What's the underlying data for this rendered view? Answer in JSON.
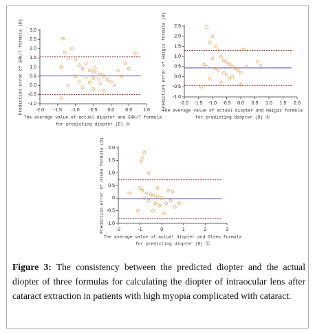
{
  "chart_data": [
    {
      "type": "scatter",
      "ylabel": "Prediction error of SRK/T formula (D)",
      "xlabel": [
        "The average value of actual diopter and SRK/T formula",
        "for predicting diopter (D) Ⓐ"
      ],
      "xlim": [
        -2,
        1
      ],
      "ylim": [
        -1,
        3
      ],
      "xticks": [
        {
          "value": -2,
          "label": "-2.0"
        },
        {
          "value": -1.5,
          "label": "-1.5"
        },
        {
          "value": -1,
          "label": "-1.0"
        },
        {
          "value": -0.5,
          "label": "-0.5"
        },
        {
          "value": 0,
          "label": "0.0"
        },
        {
          "value": 0.5,
          "label": "0.5"
        },
        {
          "value": 1,
          "label": "1.0"
        }
      ],
      "yticks": [
        {
          "value": 3,
          "label": "3.0"
        },
        {
          "value": 2.5,
          "label": "2.5"
        },
        {
          "value": 2,
          "label": "2.0"
        },
        {
          "value": 1.5,
          "label": "1.5"
        },
        {
          "value": 1,
          "label": "1.0"
        },
        {
          "value": 0.5,
          "label": "0.5"
        },
        {
          "value": 0,
          "label": "0.0"
        },
        {
          "value": -0.5,
          "label": "-0.5"
        },
        {
          "value": -1,
          "label": "-1.0"
        }
      ],
      "color": "#f0a050",
      "hlines": [
        {
          "value": 1.55,
          "color": "#9a2020",
          "dashed": true
        },
        {
          "value": 0.52,
          "color": "#4a4ab0",
          "dashed": false
        },
        {
          "value": -0.5,
          "color": "#9a2020",
          "dashed": true
        }
      ],
      "x": [
        -1.35,
        -1.1,
        -1.3,
        -1.2,
        -1.0,
        -0.9,
        -1.4,
        -0.8,
        -0.6,
        -0.5,
        -0.4,
        -0.3,
        -0.2,
        -1.0,
        -0.7,
        -0.5,
        -0.35,
        -0.1,
        0.0,
        -0.9,
        -0.6,
        -0.3,
        0.1,
        -1.2,
        -0.8,
        -0.5,
        -0.2,
        -1.4,
        0.3,
        0.5,
        0.7,
        0.4,
        -0.7,
        -0.45,
        0.2
      ],
      "values": [
        2.55,
        2.0,
        1.8,
        1.5,
        1.4,
        1.1,
        1.0,
        0.9,
        0.8,
        0.75,
        0.7,
        0.6,
        0.5,
        0.5,
        0.45,
        0.4,
        0.35,
        0.3,
        0.2,
        0.2,
        0.15,
        0.1,
        0.0,
        0.0,
        -0.1,
        -0.2,
        -0.3,
        -0.7,
        0.5,
        0.9,
        1.75,
        1.2,
        1.2,
        0.95,
        0.8
      ]
    },
    {
      "type": "scatter",
      "ylabel": "Prediction error of Haigis formula (D)",
      "xlabel": [
        "The average value of actual diopter and Haigis formula",
        "for predicting diopter (D) Ⓑ"
      ],
      "xlim": [
        -2,
        2
      ],
      "ylim": [
        -1,
        2.5
      ],
      "xticks": [
        {
          "value": -2,
          "label": "-2.0"
        },
        {
          "value": -1.5,
          "label": "-1.5"
        },
        {
          "value": -1,
          "label": "-1.0"
        },
        {
          "value": -0.5,
          "label": "-0.5"
        },
        {
          "value": 0,
          "label": "0.0"
        },
        {
          "value": 0.5,
          "label": "0.5"
        },
        {
          "value": 1,
          "label": "1.0"
        },
        {
          "value": 1.5,
          "label": "1.5"
        },
        {
          "value": 2,
          "label": "2.0"
        }
      ],
      "yticks": [
        {
          "value": 2.5,
          "label": "2.5"
        },
        {
          "value": 2,
          "label": "2.0"
        },
        {
          "value": 1.5,
          "label": "1.5"
        },
        {
          "value": 1,
          "label": "1.0"
        },
        {
          "value": 0.5,
          "label": "0.5"
        },
        {
          "value": 0,
          "label": "0.0"
        },
        {
          "value": -0.5,
          "label": "-0.5"
        },
        {
          "value": -1,
          "label": "-1.0"
        }
      ],
      "color": "#f0a050",
      "hlines": [
        {
          "value": 1.3,
          "color": "#9a2020",
          "dashed": true
        },
        {
          "value": 0.43,
          "color": "#4a4ab0",
          "dashed": false
        },
        {
          "value": -0.43,
          "color": "#9a2020",
          "dashed": true
        }
      ],
      "x": [
        -1.2,
        -1.0,
        -1.1,
        -0.9,
        -0.8,
        -1.3,
        -1.2,
        -1.0,
        -0.7,
        -0.6,
        -0.5,
        -0.4,
        -0.3,
        -0.2,
        -0.1,
        0.0,
        -0.9,
        -0.8,
        -0.6,
        -0.5,
        -0.3,
        -1.1,
        -0.7,
        0.0,
        0.1,
        0.6,
        0.7,
        -1.4,
        0.2,
        -0.4
      ],
      "values": [
        2.45,
        2.0,
        1.7,
        1.5,
        1.3,
        0.6,
        0.5,
        0.9,
        1.0,
        0.8,
        0.7,
        0.6,
        0.5,
        0.4,
        0.3,
        0.2,
        0.4,
        0.3,
        0.2,
        0.1,
        0.0,
        -0.1,
        -0.3,
        -0.4,
        1.35,
        0.75,
        0.55,
        -0.5,
        0.5,
        -0.1
      ]
    },
    {
      "type": "scatter",
      "ylabel": "Prediction error of Olsen formula (D)",
      "xlabel": [
        "The average value of actual diopter and Olsen formula",
        "for predicting diopter (D) Ⓒ"
      ],
      "xlim": [
        -2,
        3
      ],
      "ylim": [
        -1,
        2
      ],
      "xticks": [
        -2,
        -1,
        0,
        1,
        2,
        3
      ],
      "yticks": [
        {
          "value": 2,
          "label": "2.0"
        },
        {
          "value": 1.5,
          "label": "1.5"
        },
        {
          "value": 1,
          "label": "1.0"
        },
        {
          "value": 0.5,
          "label": "0.5"
        },
        0,
        {
          "value": -0.5,
          "label": "-0.5"
        },
        {
          "value": -1,
          "label": "-1.0"
        }
      ],
      "color": "#f0a050",
      "hlines": [
        {
          "value": 0.73,
          "color": "#9a2020",
          "dashed": true
        },
        {
          "value": -0.02,
          "color": "#4a4ab0",
          "dashed": false
        },
        {
          "value": -0.8,
          "color": "#9a2020",
          "dashed": true
        }
      ],
      "x": [
        -0.8,
        -0.9,
        -0.95,
        -0.6,
        -1.5,
        -1.0,
        -0.9,
        -0.7,
        -0.5,
        -0.4,
        -0.2,
        0.0,
        -0.8,
        -0.6,
        -0.3,
        -0.1,
        0.2,
        0.4,
        0.6,
        0.8,
        -1.1,
        -0.4,
        0.3,
        -0.2,
        0.1,
        0.5
      ],
      "values": [
        1.8,
        1.6,
        1.45,
        1.0,
        0.2,
        0.4,
        0.3,
        0.2,
        0.15,
        0.1,
        0.05,
        0.0,
        0.0,
        -0.1,
        -0.2,
        -0.3,
        -0.2,
        -0.1,
        -0.35,
        -0.2,
        -0.5,
        -0.5,
        0.3,
        0.4,
        -0.6,
        0.25
      ]
    }
  ],
  "caption": {
    "label": "Figure 3:",
    "text": "The consistency between the predicted diopter and the actual diopter of three formulas for calculating the diopter of intraocular lens after cataract extraction in patients with high myopia complicated with cataract."
  }
}
